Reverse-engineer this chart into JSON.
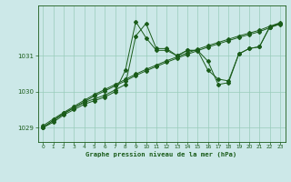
{
  "title": "Graphe pression niveau de la mer (hPa)",
  "background_color": "#cce8e8",
  "grid_color": "#99ccbb",
  "line_color": "#1a5c1a",
  "xmin": 0,
  "xmax": 23,
  "ymin": 1028.6,
  "ymax": 1032.4,
  "yticks": [
    1029,
    1030,
    1031
  ],
  "xticks": [
    0,
    1,
    2,
    3,
    4,
    5,
    6,
    7,
    8,
    9,
    10,
    11,
    12,
    13,
    14,
    15,
    16,
    17,
    18,
    19,
    20,
    21,
    22,
    23
  ],
  "series_volatile1": [
    1029.0,
    1029.15,
    1029.35,
    1029.5,
    1029.65,
    1029.75,
    1029.85,
    1030.0,
    1030.6,
    1031.95,
    1031.5,
    1031.15,
    1031.15,
    1031.0,
    1031.15,
    1031.15,
    1030.6,
    1030.35,
    1030.3,
    1031.05,
    1031.2,
    1031.25,
    1031.8,
    1031.9
  ],
  "series_straight1": [
    1029.0,
    1029.2,
    1029.38,
    1029.55,
    1029.72,
    1029.88,
    1030.02,
    1030.16,
    1030.3,
    1030.45,
    1030.58,
    1030.7,
    1030.82,
    1030.93,
    1031.04,
    1031.14,
    1031.24,
    1031.33,
    1031.42,
    1031.51,
    1031.59,
    1031.67,
    1031.78,
    1031.88
  ],
  "series_straight2": [
    1029.05,
    1029.24,
    1029.42,
    1029.59,
    1029.76,
    1029.92,
    1030.06,
    1030.2,
    1030.34,
    1030.49,
    1030.62,
    1030.74,
    1030.86,
    1030.97,
    1031.08,
    1031.18,
    1031.28,
    1031.37,
    1031.46,
    1031.55,
    1031.63,
    1031.71,
    1031.82,
    1031.92
  ],
  "series_volatile2": [
    1029.0,
    1029.2,
    1029.4,
    1029.55,
    1029.7,
    1029.8,
    1029.9,
    1030.05,
    1030.2,
    1031.55,
    1031.9,
    1031.2,
    1031.2,
    1031.0,
    1031.15,
    1031.15,
    1030.85,
    1030.2,
    1030.25,
    1031.05,
    1031.2,
    1031.25,
    1031.8,
    1031.9
  ]
}
